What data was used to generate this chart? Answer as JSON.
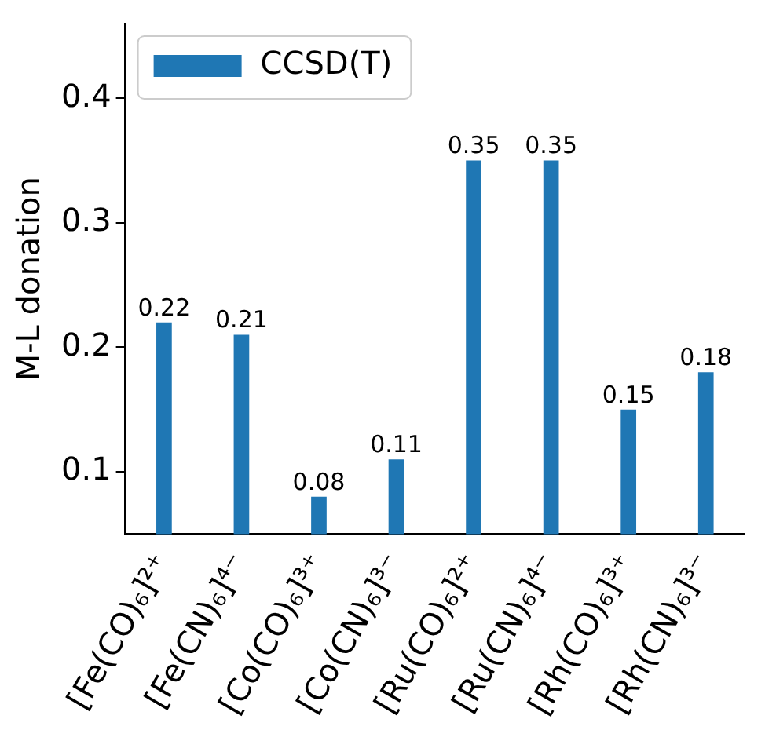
{
  "chart_data": {
    "type": "bar",
    "ylabel": "M-L donation",
    "categories": [
      "[Fe(CO)₆]²⁺",
      "[Fe(CN)₆]⁴⁻",
      "[Co(CO)₆]³⁺",
      "[Co(CN)₆]³⁻",
      "[Ru(CO)₆]²⁺",
      "[Ru(CN)₆]⁴⁻",
      "[Rh(CO)₆]³⁺",
      "[Rh(CN)₆]³⁻"
    ],
    "series": [
      {
        "name": "CCSD(T)",
        "color": "#1f77b4",
        "values": [
          0.22,
          0.21,
          0.08,
          0.11,
          0.35,
          0.35,
          0.15,
          0.18
        ]
      }
    ],
    "ylim": [
      0.05,
      0.46
    ],
    "yticks": [
      0.1,
      0.2,
      0.3,
      0.4
    ],
    "grid": false,
    "legend": "top left",
    "data_labels": true
  }
}
